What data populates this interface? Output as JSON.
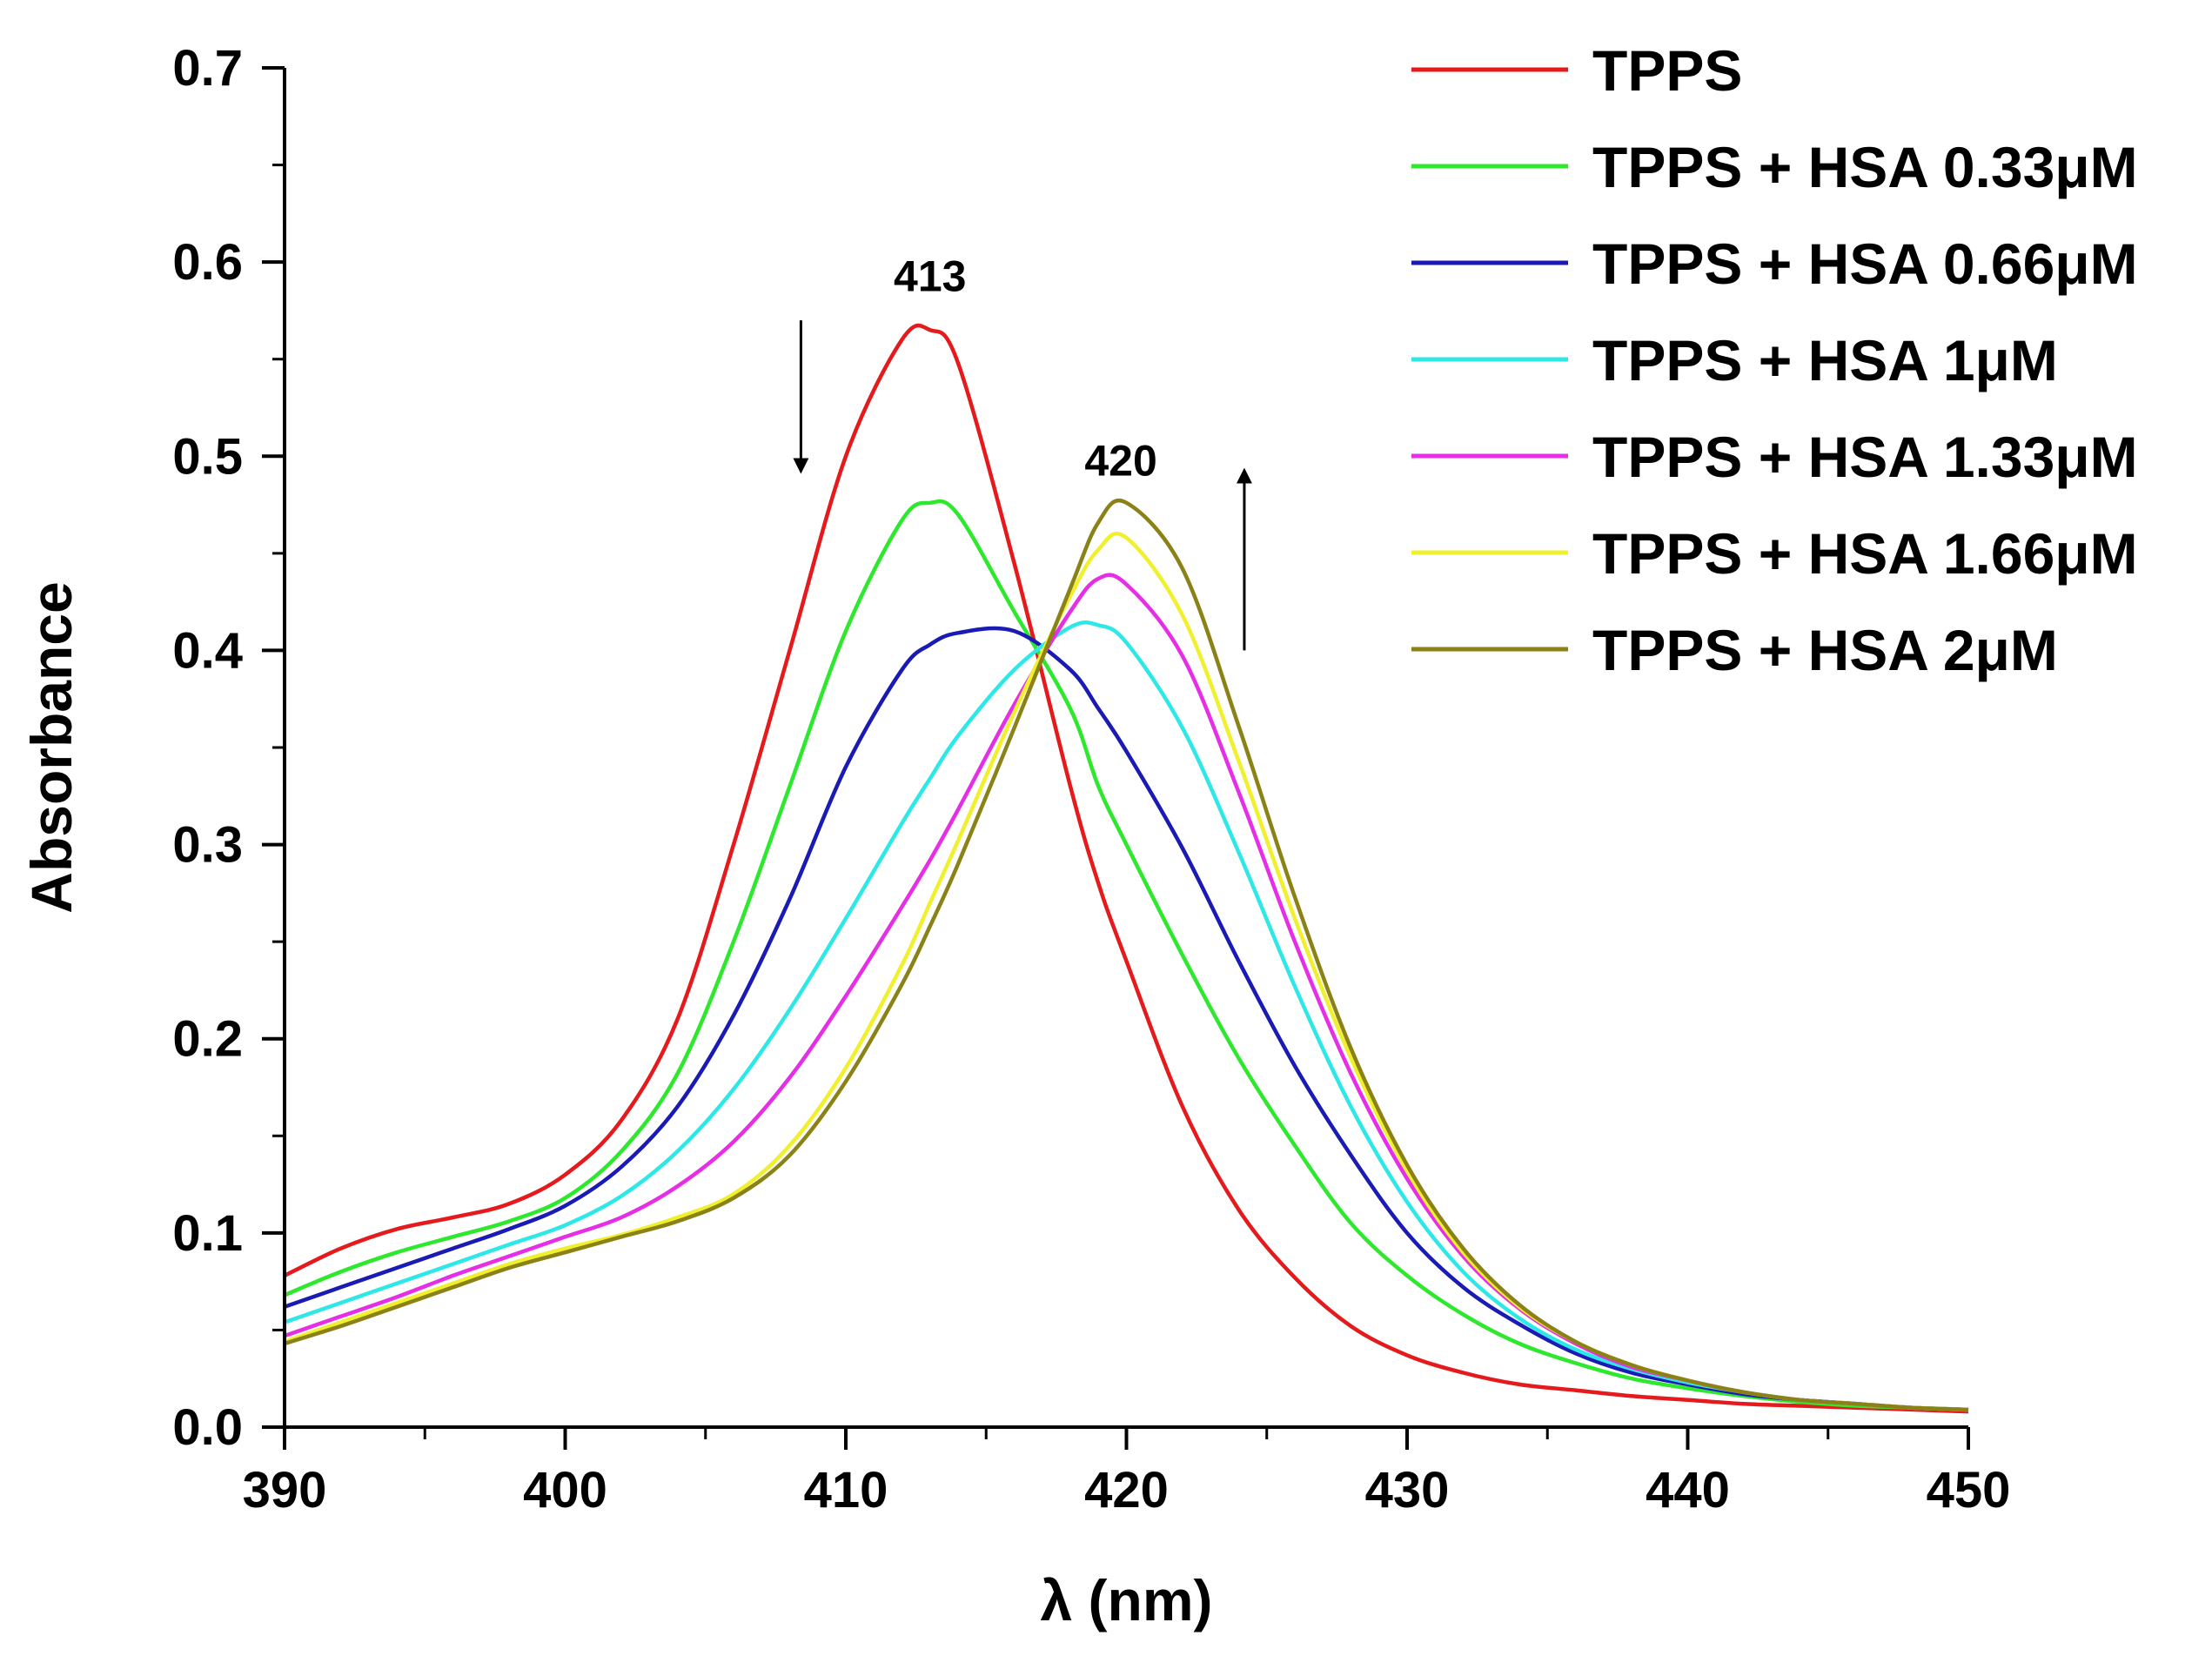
{
  "chart_data": {
    "type": "line",
    "title": "",
    "xlabel": "λ (nm)",
    "ylabel": "Absorbance",
    "xlim": [
      390,
      450
    ],
    "ylim": [
      0.0,
      0.7
    ],
    "xticks": [
      390,
      400,
      410,
      420,
      430,
      440,
      450
    ],
    "xtick_labels": [
      "390",
      "400",
      "410",
      "420",
      "430",
      "440",
      "450"
    ],
    "yticks": [
      0.0,
      0.1,
      0.2,
      0.3,
      0.4,
      0.5,
      0.6,
      0.7
    ],
    "ytick_labels": [
      "0.0",
      "0.1",
      "0.2",
      "0.3",
      "0.4",
      "0.5",
      "0.6",
      "0.7"
    ],
    "grid": false,
    "legend_position": "top-right",
    "x": [
      390,
      392,
      394,
      396,
      398,
      400,
      402,
      404,
      406,
      408,
      410,
      412,
      413,
      414,
      416,
      418,
      419,
      420,
      422,
      424,
      426,
      428,
      430,
      432,
      434,
      436,
      438,
      440,
      442,
      444,
      446,
      448,
      450
    ],
    "series": [
      {
        "name": "TPPS",
        "color": "#e41a1c",
        "values": [
          0.078,
          0.092,
          0.102,
          0.108,
          0.115,
          0.13,
          0.158,
          0.21,
          0.3,
          0.4,
          0.5,
          0.56,
          0.565,
          0.548,
          0.445,
          0.33,
          0.28,
          0.24,
          0.165,
          0.112,
          0.077,
          0.052,
          0.037,
          0.028,
          0.022,
          0.019,
          0.016,
          0.014,
          0.012,
          0.011,
          0.01,
          0.009,
          0.008
        ]
      },
      {
        "name": "TPPS + HSA 0.33μM",
        "color": "#2ee82e",
        "values": [
          0.068,
          0.08,
          0.09,
          0.098,
          0.106,
          0.118,
          0.142,
          0.182,
          0.25,
          0.33,
          0.41,
          0.467,
          0.476,
          0.47,
          0.42,
          0.37,
          0.33,
          0.3,
          0.243,
          0.19,
          0.145,
          0.105,
          0.078,
          0.058,
          0.043,
          0.033,
          0.025,
          0.02,
          0.016,
          0.013,
          0.011,
          0.01,
          0.009
        ]
      },
      {
        "name": "TPPS + HSA 0.66μM",
        "color": "#1a1ab4",
        "values": [
          0.062,
          0.072,
          0.082,
          0.092,
          0.102,
          0.114,
          0.134,
          0.165,
          0.212,
          0.272,
          0.34,
          0.39,
          0.403,
          0.409,
          0.41,
          0.39,
          0.37,
          0.348,
          0.298,
          0.24,
          0.186,
          0.14,
          0.1,
          0.072,
          0.053,
          0.038,
          0.028,
          0.022,
          0.017,
          0.014,
          0.012,
          0.01,
          0.009
        ]
      },
      {
        "name": "TPPS + HSA 1μM",
        "color": "#2ee8e8",
        "values": [
          0.054,
          0.064,
          0.074,
          0.084,
          0.094,
          0.104,
          0.119,
          0.142,
          0.174,
          0.215,
          0.262,
          0.311,
          0.334,
          0.356,
          0.39,
          0.412,
          0.413,
          0.404,
          0.36,
          0.296,
          0.227,
          0.165,
          0.116,
          0.08,
          0.056,
          0.04,
          0.03,
          0.023,
          0.018,
          0.014,
          0.012,
          0.01,
          0.009
        ]
      },
      {
        "name": "TPPS + HSA 1.33μM",
        "color": "#e62ee6",
        "values": [
          0.047,
          0.057,
          0.067,
          0.078,
          0.088,
          0.098,
          0.108,
          0.124,
          0.147,
          0.18,
          0.222,
          0.268,
          0.292,
          0.318,
          0.372,
          0.42,
          0.437,
          0.434,
          0.397,
          0.327,
          0.25,
          0.182,
          0.128,
          0.088,
          0.061,
          0.043,
          0.031,
          0.024,
          0.018,
          0.014,
          0.012,
          0.01,
          0.009
        ]
      },
      {
        "name": "TPPS + HSA 1.66μM",
        "color": "#f0f02e",
        "values": [
          0.044,
          0.054,
          0.064,
          0.074,
          0.084,
          0.092,
          0.099,
          0.108,
          0.12,
          0.145,
          0.185,
          0.238,
          0.27,
          0.302,
          0.368,
          0.428,
          0.452,
          0.458,
          0.418,
          0.343,
          0.262,
          0.19,
          0.132,
          0.09,
          0.062,
          0.044,
          0.032,
          0.024,
          0.018,
          0.014,
          0.012,
          0.01,
          0.009
        ]
      },
      {
        "name": "TPPS + HSA 2μM",
        "color": "#8b8217",
        "values": [
          0.043,
          0.052,
          0.062,
          0.072,
          0.082,
          0.09,
          0.098,
          0.106,
          0.118,
          0.14,
          0.178,
          0.228,
          0.258,
          0.29,
          0.36,
          0.432,
          0.466,
          0.476,
          0.442,
          0.361,
          0.273,
          0.195,
          0.135,
          0.092,
          0.063,
          0.044,
          0.032,
          0.024,
          0.018,
          0.014,
          0.012,
          0.01,
          0.009
        ]
      }
    ],
    "annotations": [
      {
        "text": "413",
        "x": 413,
        "y": 0.585
      },
      {
        "text": "420",
        "x": 419.8,
        "y": 0.49
      }
    ],
    "arrows": [
      {
        "name": "decrease",
        "x": 408.4,
        "y_from": 0.57,
        "y_to": 0.495,
        "direction": "down"
      },
      {
        "name": "increase",
        "x": 424.2,
        "y_from": 0.4,
        "y_to": 0.49,
        "direction": "up"
      }
    ]
  }
}
